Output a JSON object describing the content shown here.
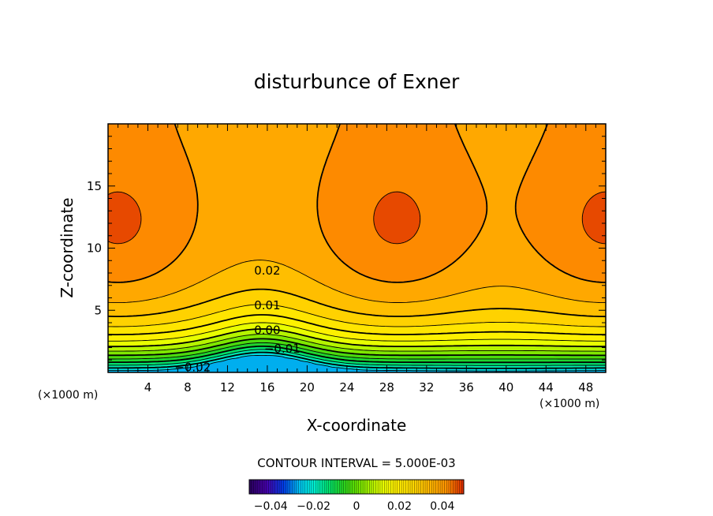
{
  "chart_data": {
    "type": "heatmap",
    "title": "disturbunce of Exner",
    "xlabel": "X-coordinate",
    "ylabel": "Z-coordinate",
    "x_unit_label": "(×1000 m)",
    "y_unit_label": "(×1000 m)",
    "xlim": [
      0,
      50
    ],
    "ylim": [
      0,
      20
    ],
    "x_ticks": [
      4,
      8,
      12,
      16,
      20,
      24,
      28,
      32,
      36,
      40,
      44,
      48
    ],
    "y_ticks": [
      5,
      10,
      15
    ],
    "contour_interval_text": "CONTOUR INTERVAL = 5.000E-03",
    "contour_interval": 0.005,
    "colorbar": {
      "min": -0.05,
      "max": 0.05,
      "tick_values": [
        -0.04,
        -0.02,
        0,
        0.02,
        0.04
      ],
      "tick_labels": [
        "−0.04",
        "−0.02",
        "0",
        "0.02",
        "0.04"
      ]
    },
    "contour_labels": [
      {
        "text": "0.02",
        "x": 16,
        "z": 8.2
      },
      {
        "text": "0.01",
        "x": 16,
        "z": 5.4
      },
      {
        "text": "0.00",
        "x": 16,
        "z": 3.4
      },
      {
        "text": "−0.01",
        "x": 17.5,
        "z": 1.9
      },
      {
        "text": "−0.02",
        "x": 8.5,
        "z": 0.4
      }
    ],
    "field_description": {
      "surface_value": -0.025,
      "max_value": 0.045,
      "max_level_z": 11.5,
      "maxima_x": [
        1,
        29,
        50
      ]
    }
  }
}
